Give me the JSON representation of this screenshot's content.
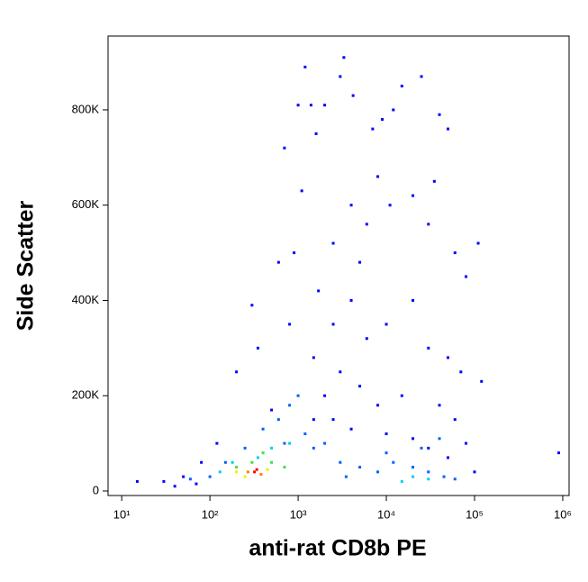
{
  "chart_data": {
    "type": "scatter",
    "x_label": "anti-rat CD8b PE",
    "y_label": "Side Scatter",
    "xscale": "log",
    "xlim": [
      7,
      1180000
    ],
    "ylim": [
      -9500,
      955000
    ],
    "xticks": [
      {
        "value": 10,
        "label": "10¹"
      },
      {
        "value": 100,
        "label": "10²"
      },
      {
        "value": 1000,
        "label": "10³"
      },
      {
        "value": 10000,
        "label": "10⁴"
      },
      {
        "value": 100000,
        "label": "10⁵"
      },
      {
        "value": 1000000,
        "label": "10⁶"
      }
    ],
    "yticks": [
      0,
      {
        "value": 200000,
        "label": "200K"
      },
      {
        "value": 400000,
        "label": "400K"
      },
      {
        "value": 600000,
        "label": "600K"
      },
      {
        "value": 800000,
        "label": "800K"
      }
    ],
    "series": [
      {
        "color": "#0000ff",
        "x": [
          15,
          30,
          50,
          80,
          120,
          200,
          300,
          350,
          600,
          700,
          900,
          1000,
          1100,
          1200,
          1400,
          1600,
          1700,
          2000,
          2500,
          3000,
          3300,
          4000,
          4200,
          5000,
          6000,
          7000,
          8000,
          9000,
          11000,
          12000,
          15000,
          20000,
          25000,
          30000,
          35000,
          40000,
          50000,
          60000,
          80000,
          110000,
          900000,
          120000,
          2500,
          4000,
          6000,
          10000,
          20000,
          30000,
          50000,
          70000,
          1500,
          800,
          2000,
          3000,
          5000,
          8000,
          15000,
          40000,
          60000,
          80000,
          100000,
          70,
          40,
          500,
          1500,
          2500,
          4000,
          10000,
          20000,
          30000,
          50000
        ],
        "values": [
          20000,
          20000,
          30000,
          60000,
          100000,
          250000,
          390000,
          300000,
          480000,
          720000,
          500000,
          810000,
          630000,
          890000,
          810000,
          750000,
          420000,
          810000,
          520000,
          870000,
          910000,
          600000,
          830000,
          480000,
          560000,
          760000,
          660000,
          780000,
          600000,
          800000,
          850000,
          620000,
          870000,
          560000,
          650000,
          790000,
          760000,
          500000,
          450000,
          520000,
          80000,
          230000,
          350000,
          400000,
          320000,
          350000,
          400000,
          300000,
          280000,
          250000,
          280000,
          350000,
          200000,
          250000,
          220000,
          180000,
          200000,
          180000,
          150000,
          100000,
          40000,
          15000,
          10000,
          170000,
          150000,
          150000,
          130000,
          120000,
          110000,
          90000,
          70000
        ]
      },
      {
        "color": "#0060ff",
        "x": [
          150,
          250,
          400,
          600,
          800,
          1000,
          1200,
          1500,
          2000,
          3000,
          5000,
          8000,
          12000,
          20000,
          30000,
          45000,
          60000,
          10000,
          700,
          100,
          60,
          3500,
          25000,
          40000
        ],
        "values": [
          60000,
          90000,
          130000,
          150000,
          180000,
          200000,
          120000,
          90000,
          100000,
          60000,
          50000,
          40000,
          60000,
          50000,
          40000,
          30000,
          25000,
          80000,
          100000,
          30000,
          25000,
          30000,
          90000,
          110000
        ]
      },
      {
        "color": "#00d0e8",
        "x": [
          130,
          180,
          500,
          800,
          20000,
          30000,
          15000,
          350
        ],
        "values": [
          40000,
          60000,
          90000,
          100000,
          30000,
          25000,
          20000,
          70000
        ]
      },
      {
        "color": "#40e040",
        "x": [
          200,
          300,
          500,
          700,
          400
        ],
        "values": [
          50000,
          60000,
          60000,
          50000,
          80000
        ]
      },
      {
        "color": "#f0f000",
        "x": [
          200,
          250,
          450
        ],
        "values": [
          40000,
          30000,
          45000
        ]
      },
      {
        "color": "#ff8000",
        "x": [
          270,
          380
        ],
        "values": [
          40000,
          35000
        ]
      },
      {
        "color": "#ff0000",
        "x": [
          320,
          340
        ],
        "values": [
          40000,
          45000
        ]
      }
    ]
  }
}
